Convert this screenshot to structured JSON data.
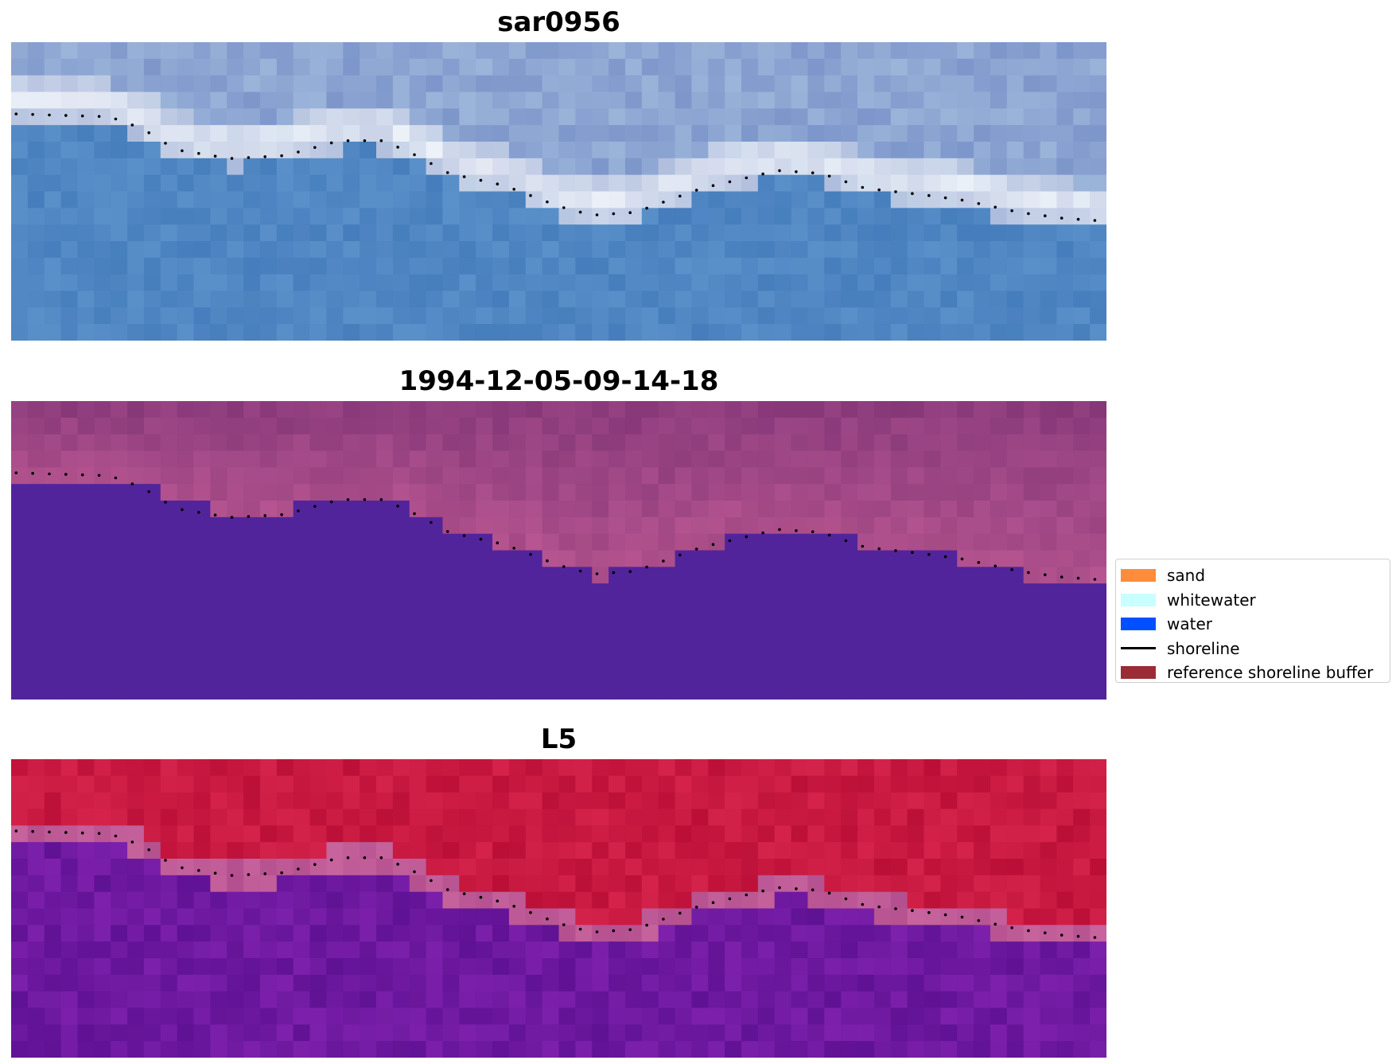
{
  "panels": [
    {
      "title": "sar0956",
      "palette": "rgb"
    },
    {
      "title": "1994-12-05-09-14-18",
      "palette": "classified"
    },
    {
      "title": "L5",
      "palette": "falsecolor"
    }
  ],
  "legend": {
    "items": [
      {
        "label": "sand",
        "color": "#ff8c3a",
        "kind": "patch"
      },
      {
        "label": "whitewater",
        "color": "#c8ffff",
        "kind": "patch"
      },
      {
        "label": "water",
        "color": "#0050ff",
        "kind": "patch"
      },
      {
        "label": "shoreline",
        "color": "#000000",
        "kind": "line"
      },
      {
        "label": "reference shoreline buffer",
        "color": "#9b2b35",
        "kind": "patch"
      }
    ]
  },
  "colors": {
    "classified_water": "#52249b",
    "classified_land": "#9c4d8a",
    "shoreline_dots": "#000000"
  }
}
